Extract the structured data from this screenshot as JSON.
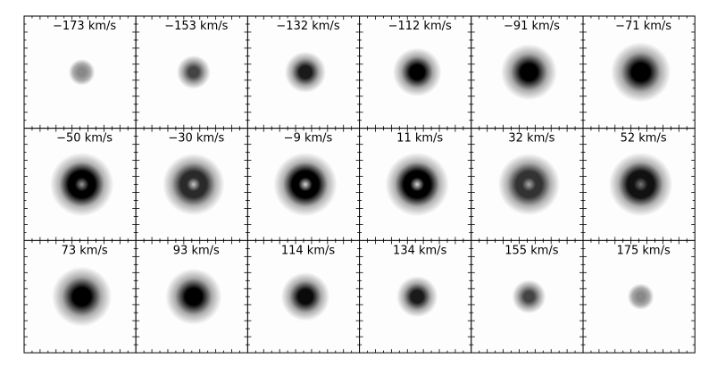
{
  "panels": [
    {
      "label": "−173 km/s"
    },
    {
      "label": "−153 km/s"
    },
    {
      "label": "−132 km/s"
    },
    {
      "label": "−112 km/s"
    },
    {
      "label": "−91 km/s"
    },
    {
      "label": "−71 km/s"
    },
    {
      "label": "−50 km/s"
    },
    {
      "label": "−30 km/s"
    },
    {
      "label": "−9 km/s"
    },
    {
      "label": "11 km/s"
    },
    {
      "label": "32 km/s"
    },
    {
      "label": "52 km/s"
    },
    {
      "label": "73 km/s"
    },
    {
      "label": "93 km/s"
    },
    {
      "label": "114 km/s"
    },
    {
      "label": "134 km/s"
    },
    {
      "label": "155 km/s"
    },
    {
      "label": "175 km/s"
    }
  ]
}
